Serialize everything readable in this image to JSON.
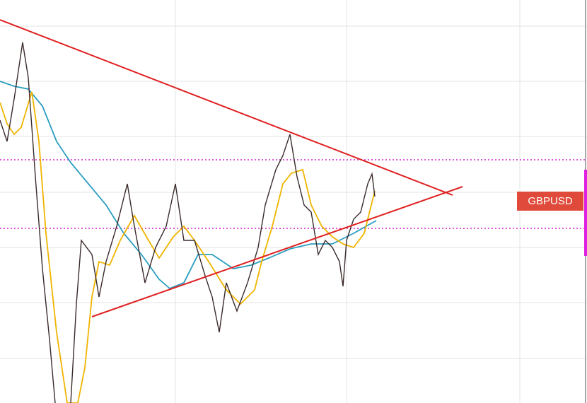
{
  "symbol_label": "GBPUSD"
}
